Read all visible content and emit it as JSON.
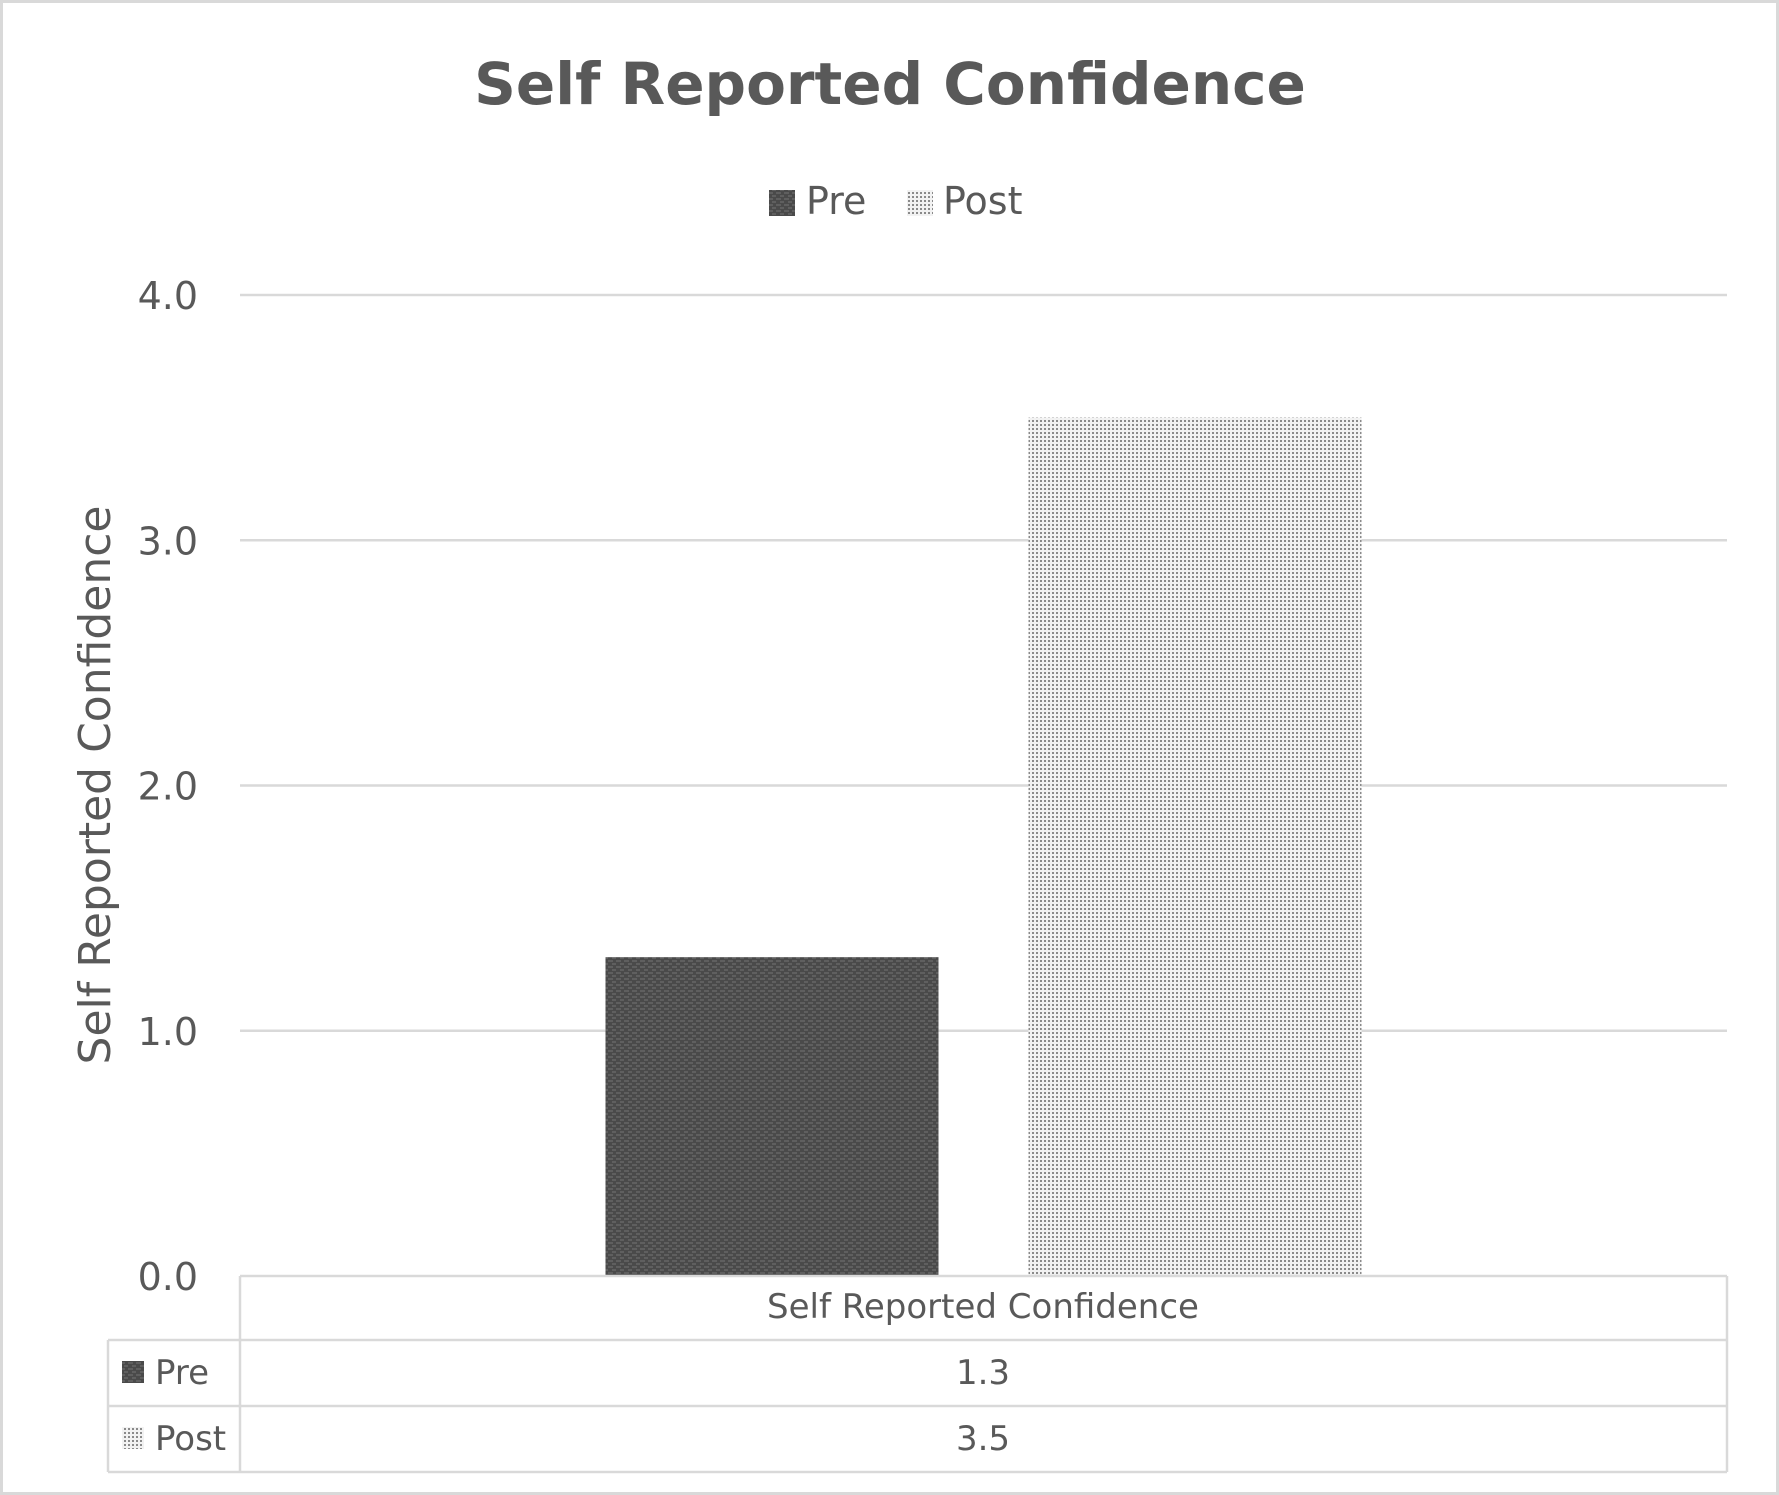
{
  "chart_data": {
    "type": "bar",
    "title": "Self Reported Confidence",
    "ylabel": "Self Reported Confidence",
    "xlabel": "",
    "categories": [
      "Self Reported Confidence"
    ],
    "series": [
      {
        "name": "Pre",
        "values": [
          1.3
        ],
        "color": "#4d4d4d",
        "pattern": "dark-brick"
      },
      {
        "name": "Post",
        "values": [
          3.5
        ],
        "color": "#a0a0a0",
        "pattern": "light-dots"
      }
    ],
    "ylim": [
      0,
      4
    ],
    "yticks": [
      "0.0",
      "1.0",
      "2.0",
      "3.0",
      "4.0"
    ],
    "grid": true,
    "legend_position": "top",
    "data_table": {
      "header": "Self Reported Confidence",
      "rows": [
        {
          "label": "Pre",
          "value": "1.3"
        },
        {
          "label": "Post",
          "value": "3.5"
        }
      ]
    }
  }
}
